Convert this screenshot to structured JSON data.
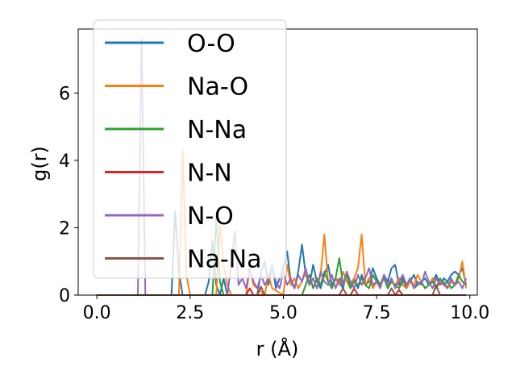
{
  "chart_data": {
    "type": "line",
    "title": "",
    "xlabel": "r (Å)",
    "ylabel": "g(r)",
    "xlim": [
      -0.5,
      10.2
    ],
    "ylim": [
      0,
      7.9
    ],
    "xticks": [
      0.0,
      2.5,
      5.0,
      7.5,
      10.0
    ],
    "xtick_labels": [
      "0.0",
      "2.5",
      "5.0",
      "7.5",
      "10.0"
    ],
    "yticks": [
      0,
      2,
      4,
      6
    ],
    "ytick_labels": [
      "0",
      "2",
      "4",
      "6"
    ],
    "grid": false,
    "legend_position": "upper-left",
    "series": [
      {
        "name": "O-O",
        "color": "#1f77b4",
        "x": [
          0.0,
          2.0,
          2.1,
          2.2,
          2.3,
          2.9,
          3.0,
          3.1,
          3.2,
          3.3,
          3.4,
          3.5,
          4.3,
          4.4,
          4.5,
          4.6,
          4.7,
          4.8,
          4.9,
          5.0,
          5.1,
          5.2,
          5.3,
          5.4,
          5.5,
          5.6,
          5.7,
          5.8,
          5.9,
          6.0,
          6.1,
          6.2,
          6.3,
          6.4,
          6.5,
          6.6,
          6.7,
          6.8,
          6.9,
          7.0,
          7.1,
          7.2,
          7.3,
          7.4,
          7.5,
          7.6,
          7.7,
          7.8,
          7.9,
          8.0,
          8.1,
          8.2,
          8.3,
          8.4,
          8.5,
          8.6,
          8.7,
          8.8,
          8.9,
          9.0,
          9.1,
          9.2,
          9.3,
          9.4,
          9.5,
          9.6,
          9.7,
          9.8,
          9.9
        ],
        "y": [
          0,
          0,
          2.5,
          0.7,
          0,
          0,
          0.4,
          1.6,
          0.3,
          0,
          0.5,
          0,
          0,
          0.7,
          1.0,
          0.3,
          0.9,
          0.2,
          0.5,
          0.8,
          1.3,
          0.4,
          0.2,
          0.7,
          1.5,
          0.6,
          0.3,
          0.9,
          0.4,
          0.2,
          0.6,
          0.9,
          0.3,
          0.5,
          0.4,
          0.2,
          0.7,
          0.3,
          0.5,
          0.2,
          0.6,
          0.3,
          0.4,
          0.8,
          0.5,
          0.3,
          0.6,
          0.4,
          0.8,
          0.9,
          0.3,
          0.5,
          0.2,
          0.4,
          0.6,
          0.3,
          0.4,
          0.5,
          0.3,
          0.4,
          0.6,
          0.3,
          0.5,
          0.4,
          0.6,
          0.7,
          0.6,
          0.8,
          0.3
        ]
      },
      {
        "name": "Na-O",
        "color": "#ff7f0e",
        "x": [
          0.0,
          2.2,
          2.3,
          2.4,
          2.5,
          3.2,
          3.3,
          3.4,
          3.5,
          3.6,
          4.0,
          4.1,
          4.2,
          4.5,
          4.6,
          4.7,
          5.0,
          5.1,
          5.2,
          5.3,
          5.4,
          5.5,
          5.6,
          5.7,
          5.8,
          5.9,
          6.0,
          6.1,
          6.2,
          6.3,
          6.4,
          6.5,
          6.6,
          6.7,
          6.8,
          6.9,
          7.0,
          7.1,
          7.2,
          7.3,
          7.4,
          7.5,
          7.6,
          7.7,
          7.8,
          7.9,
          8.0,
          8.1,
          8.2,
          8.3,
          8.4,
          8.5,
          8.6,
          8.7,
          8.8,
          8.9,
          9.0,
          9.1,
          9.2,
          9.3,
          9.4,
          9.5,
          9.6,
          9.7,
          9.8,
          9.9
        ],
        "y": [
          0,
          0,
          4.3,
          0.6,
          0,
          0,
          2.1,
          0.9,
          0.3,
          0,
          0,
          0.8,
          0.3,
          0,
          0.6,
          0.2,
          0,
          0.9,
          0.3,
          0.5,
          0.2,
          0.4,
          0.7,
          0.3,
          0.5,
          0.2,
          0.6,
          1.8,
          0.4,
          0.2,
          0.5,
          0.3,
          0.7,
          0.4,
          0.2,
          0.5,
          0.8,
          1.8,
          0.3,
          0.5,
          0.2,
          0.4,
          0.3,
          0.6,
          0.2,
          0.4,
          0.3,
          0.5,
          0.3,
          0.2,
          0.4,
          0.3,
          0.6,
          0.4,
          0.2,
          0.3,
          0.5,
          0.2,
          0.4,
          0.3,
          0.2,
          0.4,
          0.3,
          0.5,
          1.0,
          0.2
        ]
      },
      {
        "name": "N-Na",
        "color": "#2ca02c",
        "x": [
          0.0,
          3.1,
          3.2,
          3.3,
          3.4,
          5.5,
          5.6,
          5.7,
          5.8,
          5.9,
          6.0,
          6.1,
          6.2,
          6.3,
          6.4,
          6.5,
          6.6,
          6.7,
          6.8,
          6.9,
          7.0,
          7.1,
          7.2,
          7.3,
          7.4,
          7.5,
          7.6,
          7.7,
          7.8,
          7.9,
          8.0,
          8.1,
          8.2,
          8.3,
          8.4,
          8.5,
          8.6,
          8.7,
          8.8,
          8.9,
          9.0,
          9.1,
          9.2,
          9.3,
          9.4,
          9.5,
          9.6,
          9.7,
          9.8,
          9.9
        ],
        "y": [
          0,
          0,
          2.3,
          0.4,
          0,
          0,
          0.3,
          0.6,
          0.2,
          0.5,
          0.3,
          0.7,
          0.4,
          0.2,
          0.5,
          1.1,
          0.3,
          0.6,
          0.2,
          0.4,
          0.3,
          0.5,
          0.3,
          0.2,
          0.6,
          0.4,
          0.3,
          0.5,
          0.2,
          0.4,
          0.3,
          0.2,
          0.4,
          0.3,
          0.5,
          0.2,
          0.3,
          0.4,
          0.2,
          0.3,
          0.4,
          0.2,
          0.5,
          0.3,
          0.4,
          0.2,
          0.3,
          0.6,
          0.4,
          0.3
        ]
      },
      {
        "name": "N-N",
        "color": "#d62728",
        "x": [
          0.0,
          4.0,
          4.1,
          4.2,
          6.8,
          6.9,
          7.0,
          8.0,
          8.1,
          8.2,
          9.9
        ],
        "y": [
          0,
          0,
          0.2,
          0,
          0,
          0.2,
          0,
          0,
          0.15,
          0,
          0
        ]
      },
      {
        "name": "N-O",
        "color": "#9467bd",
        "x": [
          0.0,
          1.1,
          1.2,
          1.3,
          2.5,
          3.5,
          3.6,
          3.7,
          3.8,
          3.9,
          4.0,
          4.1,
          4.2,
          4.3,
          4.4,
          4.5,
          4.6,
          4.7,
          4.8,
          4.9,
          5.0,
          5.1,
          5.2,
          5.3,
          5.4,
          5.5,
          5.6,
          5.7,
          5.8,
          5.9,
          6.0,
          6.1,
          6.2,
          6.3,
          6.4,
          6.5,
          6.6,
          6.7,
          6.8,
          6.9,
          7.0,
          7.1,
          7.2,
          7.3,
          7.4,
          7.5,
          7.6,
          7.7,
          7.8,
          7.9,
          8.0,
          8.1,
          8.2,
          8.3,
          8.4,
          8.5,
          8.6,
          8.7,
          8.8,
          8.9,
          9.0,
          9.1,
          9.2,
          9.3,
          9.4,
          9.5,
          9.6,
          9.7,
          9.8,
          9.9
        ],
        "y": [
          0,
          0,
          7.6,
          0,
          0,
          0,
          0.9,
          1.9,
          0.3,
          0.5,
          0.2,
          0.8,
          0.4,
          0.2,
          0.6,
          0.3,
          0.5,
          0.9,
          0.4,
          0.2,
          0.7,
          0.3,
          0.5,
          0.2,
          0.6,
          0.4,
          0.8,
          0.3,
          0.5,
          0.2,
          0.7,
          0.4,
          0.3,
          0.6,
          0.2,
          0.5,
          0.3,
          0.7,
          0.4,
          0.2,
          0.6,
          0.3,
          0.5,
          0.8,
          0.3,
          0.4,
          0.2,
          0.6,
          0.3,
          0.5,
          0.2,
          0.4,
          0.6,
          0.3,
          0.5,
          0.2,
          0.4,
          0.3,
          0.7,
          0.4,
          0.2,
          0.5,
          0.3,
          0.4,
          0.2,
          0.5,
          0.3,
          0.4,
          0.2,
          0.5
        ]
      },
      {
        "name": "Na-Na",
        "color": "#8c564b",
        "x": [
          0.0,
          4.3,
          4.4,
          4.5,
          6.5,
          6.6,
          6.7,
          7.8,
          7.9,
          8.0,
          9.0,
          9.1,
          9.2,
          9.9
        ],
        "y": [
          0,
          0,
          0.25,
          0,
          0,
          0.2,
          0,
          0,
          0.2,
          0,
          0,
          0.3,
          0,
          0
        ]
      }
    ]
  }
}
